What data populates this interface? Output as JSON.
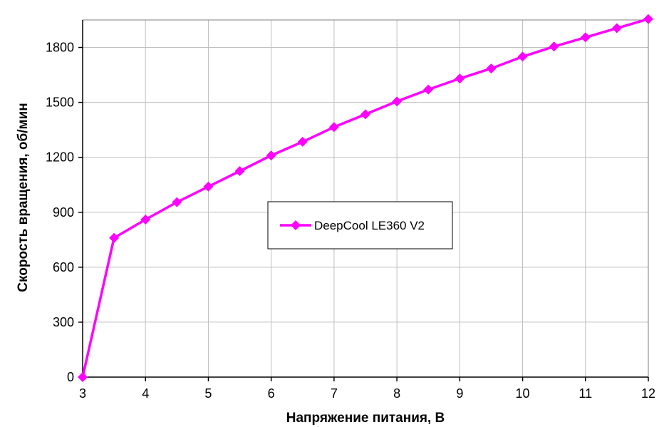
{
  "chart_data": {
    "type": "line",
    "title": "",
    "xlabel": "Напряжение питания, В",
    "ylabel": "Скорость вращения, об/мин",
    "xlim": [
      3,
      12
    ],
    "ylim": [
      0,
      1950
    ],
    "x_ticks": [
      3,
      4,
      5,
      6,
      7,
      8,
      9,
      10,
      11,
      12
    ],
    "y_ticks": [
      0,
      300,
      600,
      900,
      1200,
      1500,
      1800
    ],
    "grid": true,
    "legend_position": "center",
    "series": [
      {
        "name": "DeepCool LE360 V2",
        "color": "#FF00FF",
        "marker": "diamond",
        "x": [
          3,
          3.5,
          4,
          4.5,
          5,
          5.5,
          6,
          6.5,
          7,
          7.5,
          8,
          8.5,
          9,
          9.5,
          10,
          10.5,
          11,
          11.5,
          12
        ],
        "y": [
          0,
          760,
          860,
          955,
          1040,
          1125,
          1210,
          1285,
          1365,
          1435,
          1505,
          1570,
          1630,
          1685,
          1750,
          1805,
          1855,
          1905,
          1955
        ]
      }
    ]
  }
}
